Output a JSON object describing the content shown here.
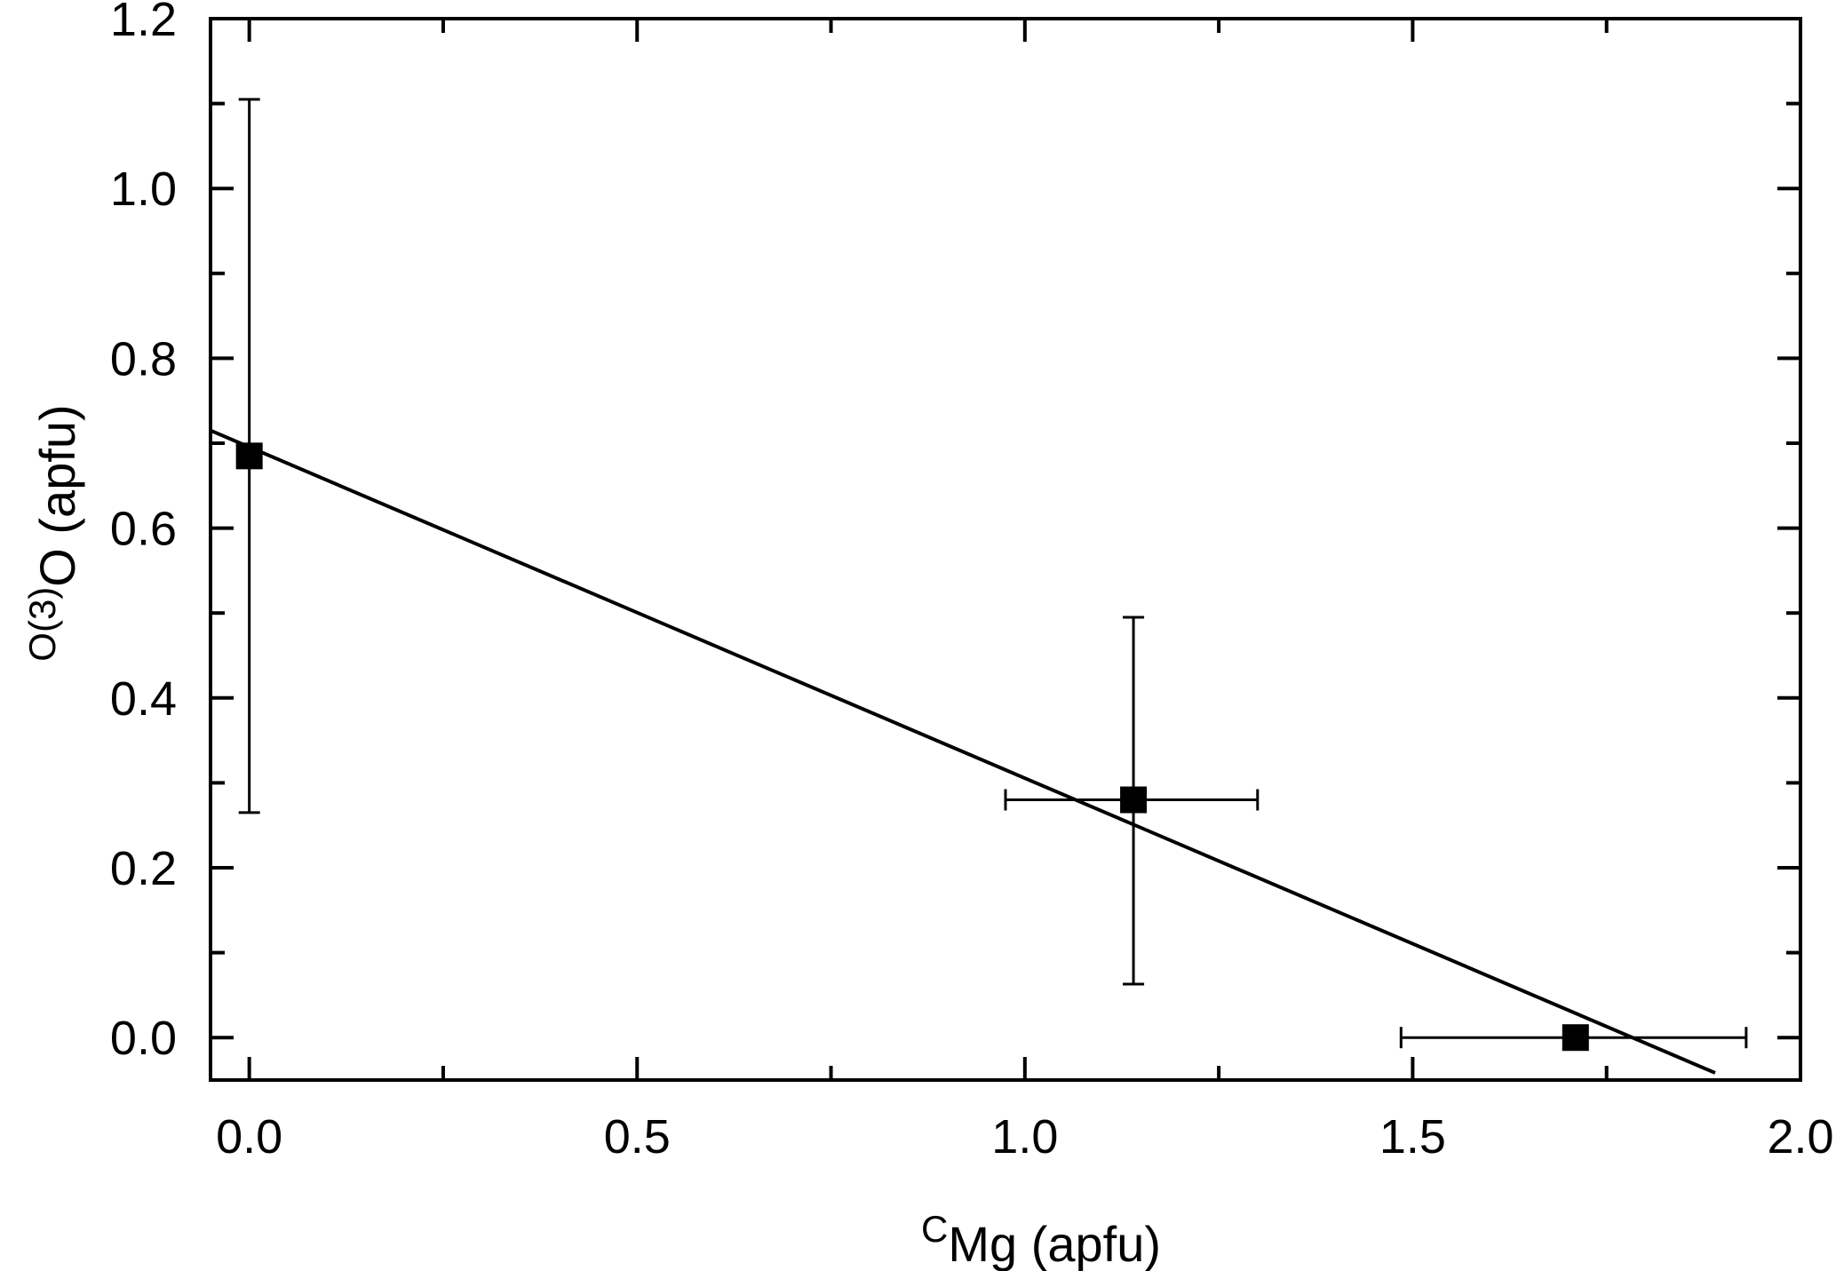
{
  "chart_data": {
    "type": "scatter",
    "title": "",
    "xlabel": {
      "superscript": "C",
      "main": "Mg (apfu)"
    },
    "ylabel": {
      "superscript": "O(3)",
      "main": "O (apfu)"
    },
    "xlim": [
      -0.05,
      2.0
    ],
    "ylim": [
      -0.05,
      1.2
    ],
    "x_ticks": [
      0.0,
      0.5,
      1.0,
      1.5,
      2.0
    ],
    "x_tick_labels": [
      "0.0",
      "0.5",
      "1.0",
      "1.5",
      "2.0"
    ],
    "x_minor_ticks": [
      0.25,
      0.75,
      1.25,
      1.75
    ],
    "y_ticks": [
      0.0,
      0.2,
      0.4,
      0.6,
      0.8,
      1.0,
      1.2
    ],
    "y_tick_labels": [
      "0.0",
      "0.2",
      "0.4",
      "0.6",
      "0.8",
      "1.0",
      "1.2"
    ],
    "y_minor_ticks": [
      0.1,
      0.3,
      0.5,
      0.7,
      0.9,
      1.1
    ],
    "grid": false,
    "legend": "none",
    "series": [
      {
        "marker": "square",
        "color": "#000000",
        "points": [
          {
            "x": 0.0,
            "y": 0.685,
            "xerr": [
              0.0,
              0.0
            ],
            "yerr": [
              0.265,
              1.105
            ]
          },
          {
            "x": 1.14,
            "y": 0.28,
            "xerr": [
              0.975,
              1.3
            ],
            "yerr": [
              0.063,
              0.495
            ]
          },
          {
            "x": 1.71,
            "y": 0.0,
            "xerr": [
              1.485,
              1.93
            ],
            "yerr": [
              0.0,
              0.0
            ]
          }
        ]
      }
    ],
    "fit_line": {
      "slope": -0.39,
      "intercept": 0.6955,
      "x_range": [
        -0.05,
        1.89
      ],
      "color": "#000000"
    }
  }
}
